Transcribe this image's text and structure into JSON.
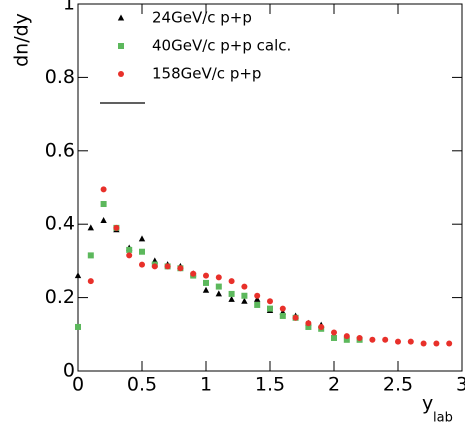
{
  "chart_data": {
    "type": "scatter",
    "y_label": "dn/dy",
    "x_label": "y",
    "x_label_subscript": "lab",
    "xlim": [
      0,
      3
    ],
    "ylim": [
      0,
      1
    ],
    "xticks": [
      0,
      0.5,
      1,
      1.5,
      2,
      2.5,
      3
    ],
    "yticks": [
      0,
      0.2,
      0.4,
      0.6,
      0.8,
      1
    ],
    "legend": "top-left",
    "series": [
      {
        "name": "24GeV/c p+p",
        "color": "#000000",
        "marker": "triangle",
        "x": [
          0,
          0.1,
          0.2,
          0.3,
          0.4,
          0.5,
          0.6,
          0.7,
          0.8,
          0.9,
          1.0,
          1.1,
          1.2,
          1.3,
          1.4,
          1.5,
          1.6,
          1.7,
          1.8,
          1.9
        ],
        "values": [
          0.26,
          0.39,
          0.41,
          0.385,
          0.335,
          0.36,
          0.3,
          0.29,
          0.285,
          0.265,
          0.22,
          0.21,
          0.195,
          0.19,
          0.195,
          0.165,
          0.16,
          0.15,
          0.13,
          0.125
        ]
      },
      {
        "name": "40GeV/c p+p calc.",
        "color": "#5cb85c",
        "marker": "square",
        "x": [
          0,
          0.1,
          0.2,
          0.3,
          0.4,
          0.5,
          0.6,
          0.7,
          0.8,
          0.9,
          1.0,
          1.1,
          1.2,
          1.3,
          1.4,
          1.5,
          1.6,
          1.7,
          1.8,
          1.9,
          2.0,
          2.1,
          2.2
        ],
        "values": [
          0.12,
          0.315,
          0.455,
          0.39,
          0.33,
          0.325,
          0.29,
          0.285,
          0.28,
          0.26,
          0.24,
          0.23,
          0.21,
          0.205,
          0.18,
          0.17,
          0.15,
          0.145,
          0.12,
          0.115,
          0.09,
          0.085,
          0.085
        ]
      },
      {
        "name": "158GeV/c p+p",
        "color": "#e8302a",
        "marker": "circle",
        "x": [
          0.1,
          0.2,
          0.3,
          0.4,
          0.5,
          0.6,
          0.7,
          0.8,
          0.9,
          1.0,
          1.1,
          1.2,
          1.3,
          1.4,
          1.5,
          1.6,
          1.7,
          1.8,
          1.9,
          2.0,
          2.1,
          2.2,
          2.3,
          2.4,
          2.5,
          2.6,
          2.7,
          2.8,
          2.9
        ],
        "values": [
          0.245,
          0.495,
          0.39,
          0.315,
          0.29,
          0.285,
          0.285,
          0.28,
          0.265,
          0.26,
          0.255,
          0.245,
          0.23,
          0.205,
          0.19,
          0.17,
          0.145,
          0.13,
          0.12,
          0.105,
          0.095,
          0.09,
          0.085,
          0.085,
          0.08,
          0.08,
          0.075,
          0.075,
          0.075
        ]
      }
    ]
  }
}
